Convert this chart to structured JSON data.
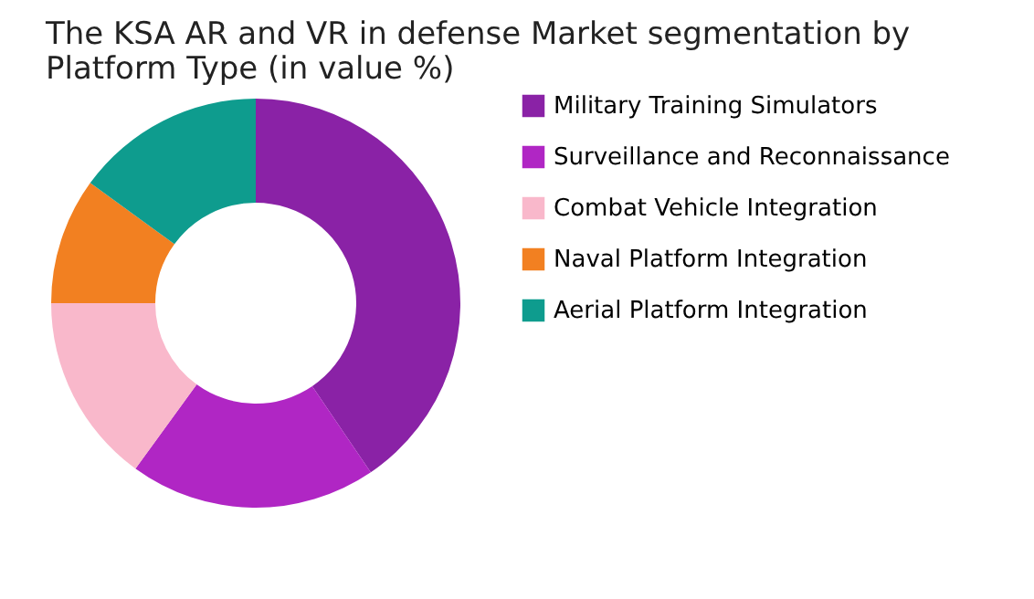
{
  "chart_data": {
    "type": "donut",
    "title": "The KSA AR and VR in defense Market segmentation by Platform Type (in value %)",
    "categories": [
      "Military Training Simulators",
      "Surveillance and Reconnaissance",
      "Combat Vehicle Integration",
      "Naval Platform Integration",
      "Aerial Platform Integration"
    ],
    "values": [
      40.5,
      19.5,
      15,
      10,
      15
    ],
    "colors": [
      "#8a22a6",
      "#b026c4",
      "#f9b8cb",
      "#f28021",
      "#0e9c8e"
    ],
    "legend": "right"
  }
}
